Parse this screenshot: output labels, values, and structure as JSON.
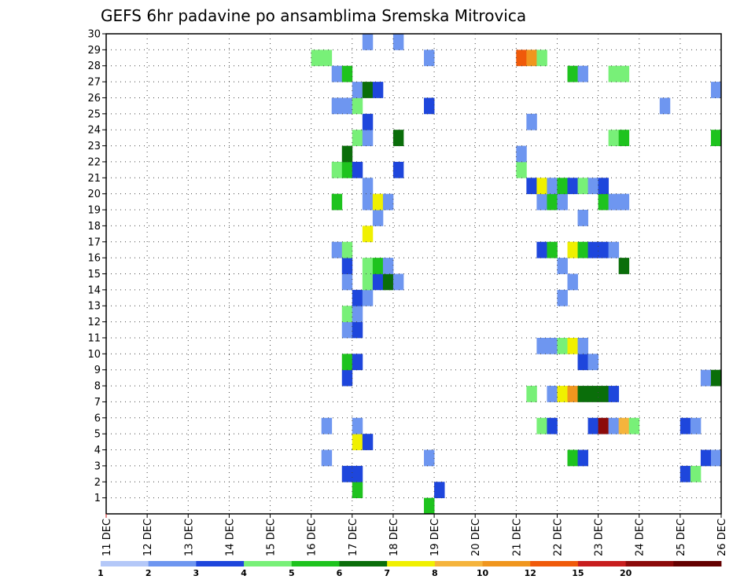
{
  "chart_data": {
    "type": "heatmap",
    "title": "GEFS 6hr padavine po ansamblima Sremska Mitrovica",
    "xlabel": "",
    "ylabel": "",
    "x_tick_labels": [
      "11 DEC",
      "12 DEC",
      "13 DEC",
      "14 DEC",
      "15 DEC",
      "16 DEC",
      "17 DEC",
      "18 DEC",
      "19 DEC",
      "20 DEC",
      "21 DEC",
      "22 DEC",
      "23 DEC",
      "24 DEC",
      "25 DEC",
      "26 DEC"
    ],
    "y_tick_labels": [
      "1",
      "2",
      "3",
      "4",
      "5",
      "6",
      "7",
      "8",
      "9",
      "10",
      "11",
      "12",
      "13",
      "14",
      "15",
      "16",
      "17",
      "18",
      "19",
      "20",
      "21",
      "22",
      "23",
      "24",
      "25",
      "26",
      "27",
      "28",
      "29",
      "30"
    ],
    "ylim": [
      0,
      30
    ],
    "x_unit": "6-hour step from 11 DEC 00Z",
    "x_range": [
      0,
      60
    ],
    "grid": true,
    "legend": {
      "position": "bottom",
      "labels": [
        "1",
        "2",
        "3",
        "4",
        "5",
        "6",
        "7",
        "8",
        "10",
        "12",
        "15",
        "20"
      ],
      "colors": [
        "#b4c8f8",
        "#6e96f0",
        "#1e46dc",
        "#78f078",
        "#1ec31e",
        "#0a6e0a",
        "#f0f000",
        "#f5b43c",
        "#f0961e",
        "#f05a0a",
        "#c81e1e",
        "#8c0a0a",
        "#640000"
      ]
    },
    "cells": [
      [
        31,
        0,
        4
      ],
      [
        24,
        1,
        4
      ],
      [
        32,
        1,
        2
      ],
      [
        23,
        2,
        2
      ],
      [
        24,
        2,
        2
      ],
      [
        56,
        2,
        2
      ],
      [
        57,
        2,
        3
      ],
      [
        21,
        3,
        1
      ],
      [
        31,
        3,
        1
      ],
      [
        45,
        3,
        4
      ],
      [
        46,
        3,
        2
      ],
      [
        58,
        3,
        2
      ],
      [
        59,
        3,
        1
      ],
      [
        24,
        4,
        6
      ],
      [
        25,
        4,
        2
      ],
      [
        21,
        5,
        1
      ],
      [
        24,
        5,
        1
      ],
      [
        42,
        5,
        3
      ],
      [
        43,
        5,
        2
      ],
      [
        47,
        5,
        2
      ],
      [
        48,
        5,
        11
      ],
      [
        49,
        5,
        1
      ],
      [
        50,
        5,
        7
      ],
      [
        51,
        5,
        3
      ],
      [
        56,
        5,
        2
      ],
      [
        57,
        5,
        1
      ],
      [
        41,
        7,
        3
      ],
      [
        43,
        7,
        1
      ],
      [
        44,
        7,
        6
      ],
      [
        45,
        7,
        8
      ],
      [
        46,
        7,
        5
      ],
      [
        47,
        7,
        5
      ],
      [
        48,
        7,
        5
      ],
      [
        49,
        7,
        2
      ],
      [
        23,
        8,
        2
      ],
      [
        58,
        8,
        1
      ],
      [
        59,
        8,
        5
      ],
      [
        23,
        9,
        4
      ],
      [
        24,
        9,
        2
      ],
      [
        46,
        9,
        2
      ],
      [
        47,
        9,
        1
      ],
      [
        42,
        10,
        1
      ],
      [
        43,
        10,
        1
      ],
      [
        44,
        10,
        3
      ],
      [
        45,
        10,
        6
      ],
      [
        46,
        10,
        1
      ],
      [
        23,
        11,
        1
      ],
      [
        24,
        11,
        2
      ],
      [
        60,
        11,
        2
      ],
      [
        23,
        12,
        3
      ],
      [
        24,
        12,
        1
      ],
      [
        24,
        13,
        2
      ],
      [
        25,
        13,
        1
      ],
      [
        44,
        13,
        1
      ],
      [
        23,
        14,
        1
      ],
      [
        25,
        14,
        3
      ],
      [
        26,
        14,
        2
      ],
      [
        27,
        14,
        5
      ],
      [
        28,
        14,
        1
      ],
      [
        45,
        14,
        1
      ],
      [
        23,
        15,
        2
      ],
      [
        25,
        15,
        3
      ],
      [
        26,
        15,
        4
      ],
      [
        27,
        15,
        1
      ],
      [
        44,
        15,
        1
      ],
      [
        50,
        15,
        5
      ],
      [
        22,
        16,
        1
      ],
      [
        23,
        16,
        3
      ],
      [
        42,
        16,
        2
      ],
      [
        43,
        16,
        4
      ],
      [
        45,
        16,
        6
      ],
      [
        46,
        16,
        4
      ],
      [
        47,
        16,
        2
      ],
      [
        48,
        16,
        2
      ],
      [
        49,
        16,
        1
      ],
      [
        25,
        17,
        6
      ],
      [
        26,
        18,
        1
      ],
      [
        46,
        18,
        1
      ],
      [
        22,
        19,
        4
      ],
      [
        25,
        19,
        1
      ],
      [
        26,
        19,
        6
      ],
      [
        27,
        19,
        1
      ],
      [
        42,
        19,
        1
      ],
      [
        43,
        19,
        4
      ],
      [
        44,
        19,
        1
      ],
      [
        48,
        19,
        4
      ],
      [
        49,
        19,
        1
      ],
      [
        50,
        19,
        1
      ],
      [
        25,
        20,
        1
      ],
      [
        41,
        20,
        2
      ],
      [
        42,
        20,
        6
      ],
      [
        43,
        20,
        1
      ],
      [
        44,
        20,
        4
      ],
      [
        45,
        20,
        2
      ],
      [
        46,
        20,
        3
      ],
      [
        47,
        20,
        1
      ],
      [
        48,
        20,
        2
      ],
      [
        22,
        21,
        3
      ],
      [
        23,
        21,
        4
      ],
      [
        24,
        21,
        2
      ],
      [
        28,
        21,
        2
      ],
      [
        40,
        21,
        3
      ],
      [
        23,
        22,
        5
      ],
      [
        40,
        22,
        1
      ],
      [
        24,
        23,
        3
      ],
      [
        25,
        23,
        1
      ],
      [
        28,
        23,
        5
      ],
      [
        49,
        23,
        3
      ],
      [
        50,
        23,
        4
      ],
      [
        59,
        23,
        4
      ],
      [
        25,
        24,
        2
      ],
      [
        41,
        24,
        1
      ],
      [
        22,
        25,
        1
      ],
      [
        23,
        25,
        1
      ],
      [
        24,
        25,
        3
      ],
      [
        31,
        25,
        2
      ],
      [
        54,
        25,
        1
      ],
      [
        24,
        26,
        1
      ],
      [
        25,
        26,
        5
      ],
      [
        26,
        26,
        2
      ],
      [
        59,
        26,
        1
      ],
      [
        22,
        27,
        1
      ],
      [
        23,
        27,
        4
      ],
      [
        45,
        27,
        4
      ],
      [
        46,
        27,
        1
      ],
      [
        49,
        27,
        3
      ],
      [
        50,
        27,
        3
      ],
      [
        20,
        28,
        3
      ],
      [
        21,
        28,
        3
      ],
      [
        31,
        28,
        1
      ],
      [
        40,
        28,
        9
      ],
      [
        41,
        28,
        8
      ],
      [
        42,
        28,
        3
      ],
      [
        25,
        29,
        1
      ],
      [
        28,
        29,
        1
      ]
    ]
  }
}
